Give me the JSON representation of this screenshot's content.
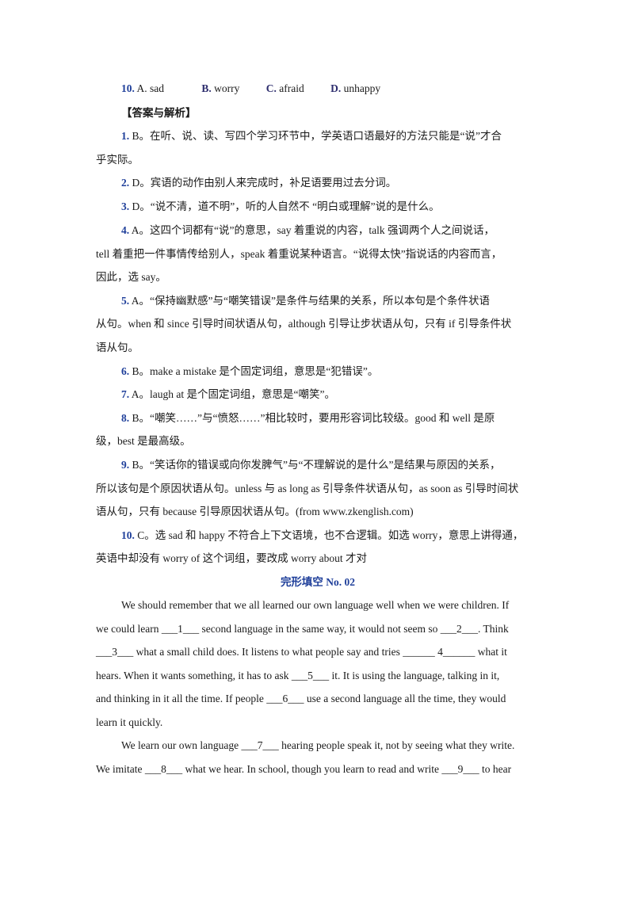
{
  "q10": {
    "num": "10.",
    "a": "A. sad",
    "b_lbl": "B.",
    "b": "worry",
    "c_lbl": "C.",
    "c": "afraid",
    "d_lbl": "D.",
    "d": "unhappy"
  },
  "answers_heading": "【答案与解析】",
  "answers": [
    {
      "num": "1.",
      "lines": [
        "B。在听、说、读、写四个学习环节中，学英语口语最好的方法只能是“说”才合",
        "乎实际。"
      ]
    },
    {
      "num": "2.",
      "lines": [
        "D。宾语的动作由别人来完成时，补足语要用过去分词。"
      ]
    },
    {
      "num": "3.",
      "lines": [
        "D。“说不清，道不明”，听的人自然不 “明白或理解”说的是什么。"
      ]
    },
    {
      "num": "4.",
      "lines": [
        "A。这四个词都有“说”的意思，say 着重说的内容，talk 强调两个人之间说话，",
        "tell 着重把一件事情传给别人，speak 着重说某种语言。“说得太快”指说话的内容而言，",
        "因此，选 say。"
      ]
    },
    {
      "num": "5.",
      "lines": [
        "A。“保持幽默感”与“嘲笑错误”是条件与结果的关系，所以本句是个条件状语",
        "从句。when 和 since 引导时间状语从句，although 引导让步状语从句，只有 if 引导条件状",
        "语从句。"
      ]
    },
    {
      "num": "6.",
      "lines": [
        "B。make a mistake 是个固定词组，意思是“犯错误”。"
      ]
    },
    {
      "num": "7.",
      "lines": [
        "A。laugh at 是个固定词组，意思是“嘲笑”。"
      ]
    },
    {
      "num": "8.",
      "lines": [
        "B。“嘲笑……”与“愤怒……”相比较时，要用形容词比较级。good 和 well 是原",
        "级，best 是最高级。"
      ]
    },
    {
      "num": "9.",
      "lines": [
        "B。“笑话你的错误或向你发脾气”与“不理解说的是什么”是结果与原因的关系，",
        "所以该句是个原因状语从句。unless 与 as long as 引导条件状语从句，as soon as 引导时间状",
        "语从句，只有 because 引导原因状语从句。(from www.zkenglish.com)"
      ]
    },
    {
      "num": "10.",
      "lines": [
        "C。选 sad 和 happy 不符合上下文语境，也不合逻辑。如选 worry，意思上讲得通，",
        "英语中却没有 worry of 这个词组，要改成 worry about 才对"
      ]
    }
  ],
  "section_title": "完形填空 No. 02",
  "passage": [
    "We should remember that we all learned our own language well when we were children. If",
    "we could learn ___1___ second language in the same way, it would not seem so ___2___. Think",
    "___3___ what a small child does. It listens to what people say and tries ______ 4______ what it",
    "hears.  When it wants something, it has to ask ___5___ it. It is using the language, talking in it,",
    "and thinking in it all the time. If people ___6___ use a second language all the time, they would",
    "learn it quickly.",
    "We learn our own language ___7___ hearing people speak it, not by seeing what they write.",
    "We imitate ___8___ what we hear. In school, though you learn to read and write ___9___ to hear"
  ]
}
